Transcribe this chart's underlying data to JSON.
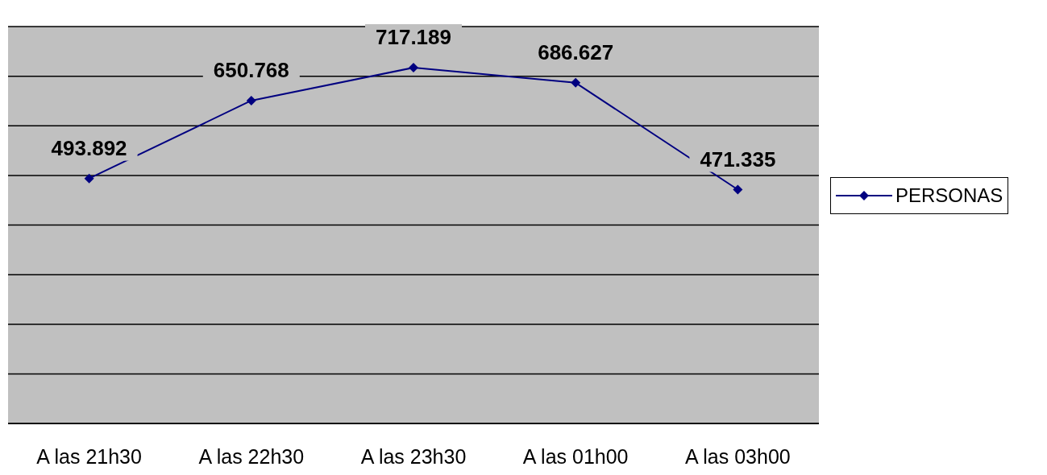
{
  "chart_data": {
    "type": "line",
    "categories": [
      "A las 21h30",
      "A las 22h30",
      "A las 23h30",
      "A las 01h00",
      "A las 03h00"
    ],
    "series": [
      {
        "name": "PERSONAS",
        "color": "#000080",
        "values": [
          493.892,
          650.768,
          717.189,
          686.627,
          471.335
        ]
      }
    ],
    "ylim": [
      0,
      800
    ],
    "yticks": [
      {
        "value": 0,
        "label": null
      },
      {
        "value": 100,
        "label": null
      },
      {
        "value": 200,
        "label": null
      },
      {
        "value": 300,
        "label": null
      },
      {
        "value": 400,
        "label": null
      },
      {
        "value": 500,
        "label": null
      },
      {
        "value": 600,
        "label": null
      },
      {
        "value": 700,
        "label": null
      },
      {
        "value": 800,
        "label": null
      }
    ],
    "tick_labels": "x",
    "grid": "y",
    "legend": "right",
    "marker": "diamond",
    "line_style": "solid",
    "data_labels": true
  }
}
